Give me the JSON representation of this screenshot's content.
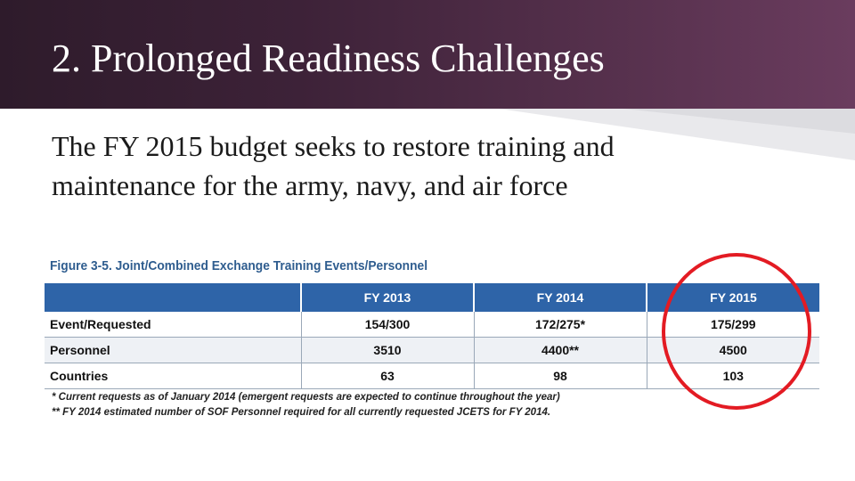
{
  "slide": {
    "title": "2. Prolonged Readiness Challenges",
    "body_line_1": "The FY 2015 budget seeks to restore training and",
    "body_line_2": "maintenance for the army, navy, and air force"
  },
  "figure": {
    "title": "Figure 3-5.  Joint/Combined Exchange Training Events/Personnel",
    "columns": [
      "",
      "FY 2013",
      "FY 2014",
      "FY 2015"
    ],
    "rows": [
      {
        "label": "Event/Requested",
        "fy2013": "154/300",
        "fy2014": "172/275*",
        "fy2015": "175/299"
      },
      {
        "label": "Personnel",
        "fy2013": "3510",
        "fy2014": "4400**",
        "fy2015": "4500"
      },
      {
        "label": "Countries",
        "fy2013": "63",
        "fy2014": "98",
        "fy2015": "103"
      }
    ],
    "note_1": "* Current requests as of January 2014 (emergent requests are expected to continue throughout the year)",
    "note_2": "** FY 2014 estimated number of SOF Personnel required for all currently requested JCETS for FY 2014."
  },
  "colors": {
    "title_bar": "#3d2238",
    "table_header": "#2e64a8",
    "highlight_circle": "#e31b23",
    "figure_title": "#2f5d8f"
  }
}
